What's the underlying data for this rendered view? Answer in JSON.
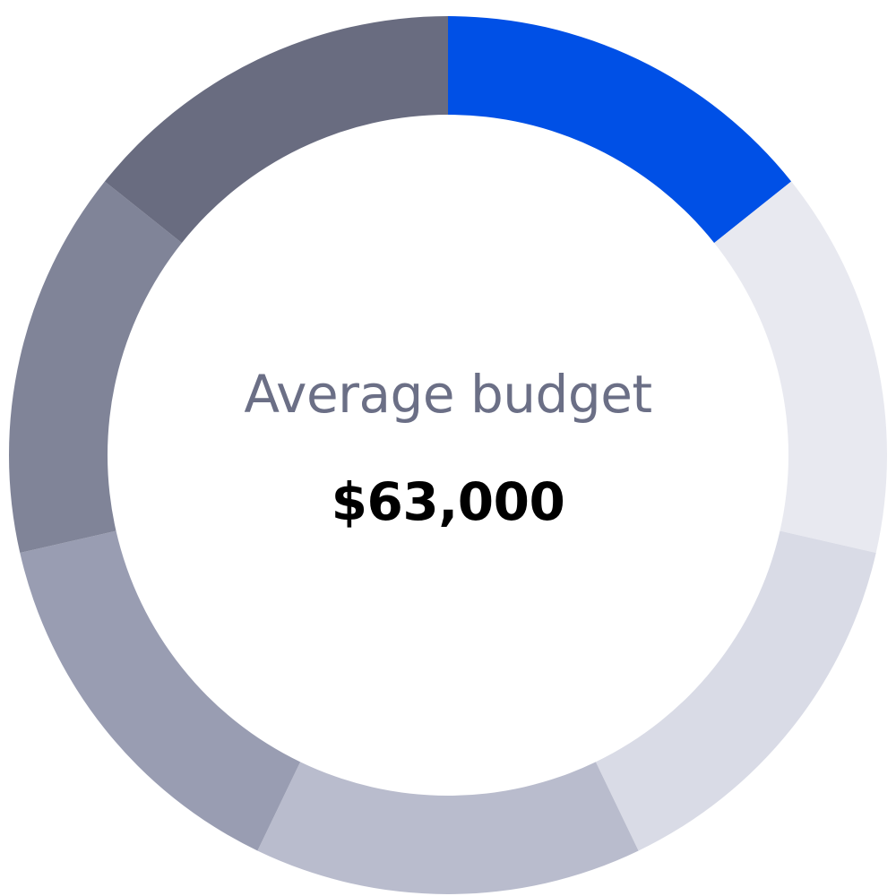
{
  "chart_data": {
    "type": "pie",
    "variant": "donut",
    "title": "",
    "center_text": {
      "label": "Average budget",
      "value": "$63,000"
    },
    "segments": [
      {
        "value": 1,
        "color": "#0050e6"
      },
      {
        "value": 1,
        "color": "#e8e9f0"
      },
      {
        "value": 1,
        "color": "#d9dbe6"
      },
      {
        "value": 1,
        "color": "#b9bccd"
      },
      {
        "value": 1,
        "color": "#999db2"
      },
      {
        "value": 1,
        "color": "#808498"
      },
      {
        "value": 1,
        "color": "#696c80"
      }
    ],
    "legend": "none"
  }
}
